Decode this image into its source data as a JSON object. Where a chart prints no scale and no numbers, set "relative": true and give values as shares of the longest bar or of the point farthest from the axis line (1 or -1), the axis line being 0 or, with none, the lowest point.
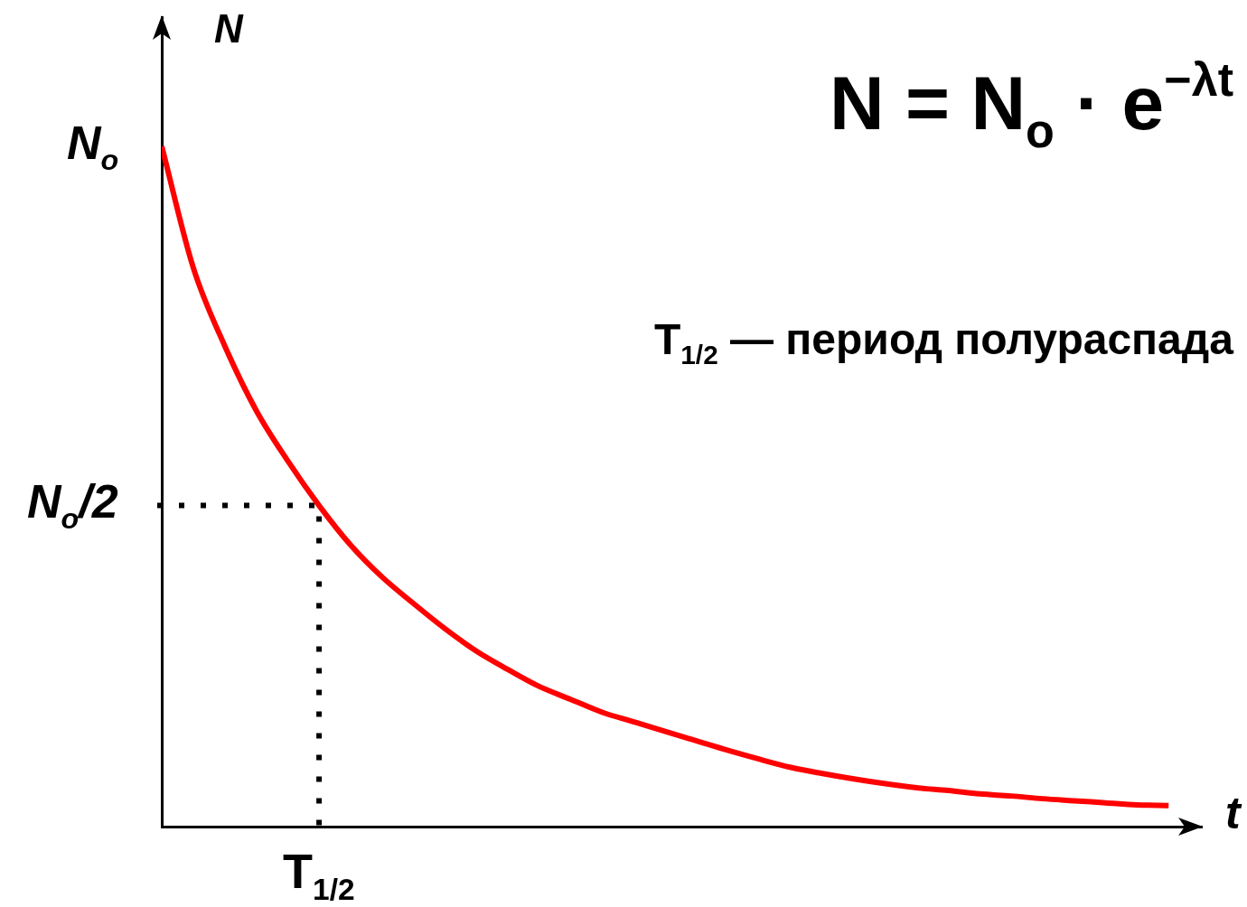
{
  "chart_data": {
    "type": "line",
    "relative": true,
    "xlabel": "t",
    "ylabel": "N",
    "annotations": [
      "N = N$_{o}$ · e$^{−λt}$",
      "T$_{1/2}$ — период полураспада",
      "N$_{o}$",
      "T$_{1/2}$"
    ],
    "categories": [
      null,
      null,
      null,
      null,
      null,
      null,
      null,
      null,
      null,
      null,
      null,
      null,
      null,
      null,
      null,
      null,
      null,
      null,
      null,
      null,
      null,
      null,
      null,
      null,
      null,
      null,
      null,
      null,
      null,
      null,
      null,
      null,
      null
    ],
    "series": [
      {
        "color": "#ff0000",
        "values": [
          1,
          0.822,
          0.707,
          0.612,
          0.538,
          0.472,
          0.414,
          0.367,
          0.328,
          0.291,
          0.258,
          0.231,
          0.206,
          0.187,
          0.168,
          0.154,
          0.14,
          0.126,
          0.112,
          0.099,
          0.087,
          0.078,
          0.07,
          0.063,
          0.057,
          0.053,
          0.048,
          0.045,
          0.041,
          0.038,
          0.035,
          0.032,
          0.031
        ]
      }
    ],
    "ref_lines": [
      {
        "axis": "y",
        "value": 0.472,
        "label": "N$_{o}$/2",
        "line_style": "dotted"
      }
    ],
    "marker": "none",
    "legend": false
  }
}
